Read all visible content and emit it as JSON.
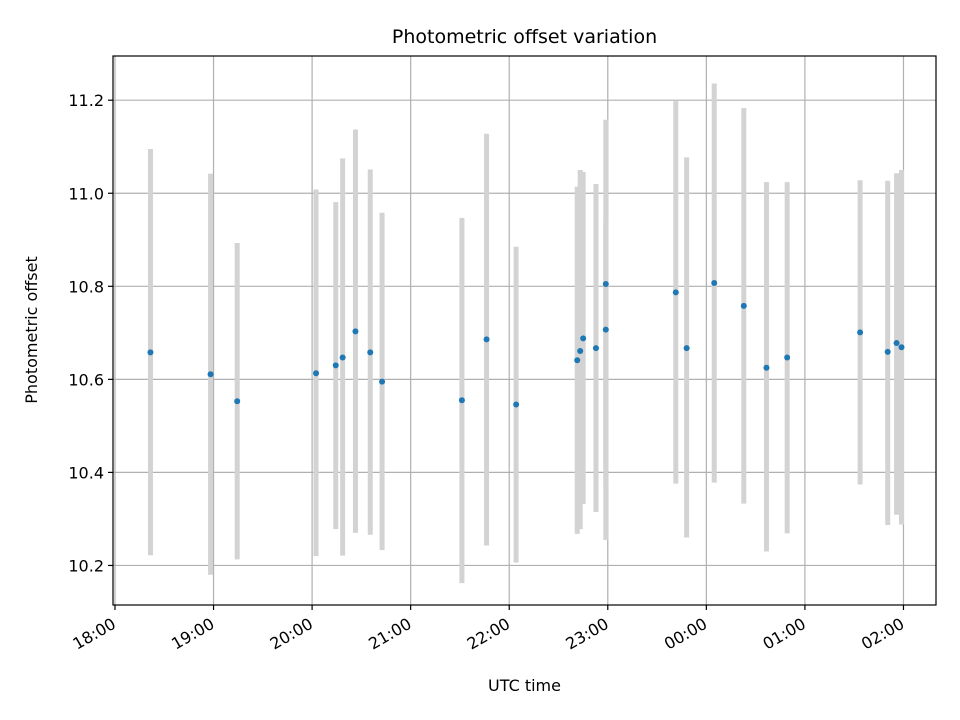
{
  "chart_data": {
    "type": "scatter",
    "title": "Photometric offset variation",
    "xlabel": "UTC time",
    "ylabel": "Photometric offset",
    "x_unit": "hours",
    "xlim": [
      17.98,
      26.33
    ],
    "ylim": [
      10.115,
      11.295
    ],
    "grid": true,
    "colors": {
      "points": "#1f77b4",
      "errorbars": "#d3d3d3",
      "grid": "#b0b0b0"
    },
    "xticks": [
      {
        "value": 18,
        "label": "18:00"
      },
      {
        "value": 19,
        "label": "19:00"
      },
      {
        "value": 20,
        "label": "20:00"
      },
      {
        "value": 21,
        "label": "21:00"
      },
      {
        "value": 22,
        "label": "22:00"
      },
      {
        "value": 23,
        "label": "23:00"
      },
      {
        "value": 24,
        "label": "00:00"
      },
      {
        "value": 25,
        "label": "01:00"
      },
      {
        "value": 26,
        "label": "02:00"
      }
    ],
    "yticks": [
      {
        "value": 10.2,
        "label": "10.2"
      },
      {
        "value": 10.4,
        "label": "10.4"
      },
      {
        "value": 10.6,
        "label": "10.6"
      },
      {
        "value": 10.8,
        "label": "10.8"
      },
      {
        "value": 11.0,
        "label": "11.0"
      },
      {
        "value": 11.2,
        "label": "11.2"
      }
    ],
    "points": [
      {
        "x": 18.36,
        "y": 10.658,
        "lo": 10.222,
        "hi": 11.095
      },
      {
        "x": 18.97,
        "y": 10.611,
        "lo": 10.18,
        "hi": 11.042
      },
      {
        "x": 19.24,
        "y": 10.553,
        "lo": 10.213,
        "hi": 10.893
      },
      {
        "x": 20.04,
        "y": 10.613,
        "lo": 10.22,
        "hi": 11.008
      },
      {
        "x": 20.24,
        "y": 10.63,
        "lo": 10.278,
        "hi": 10.981
      },
      {
        "x": 20.31,
        "y": 10.647,
        "lo": 10.221,
        "hi": 11.075
      },
      {
        "x": 20.44,
        "y": 10.703,
        "lo": 10.27,
        "hi": 11.137
      },
      {
        "x": 20.59,
        "y": 10.658,
        "lo": 10.266,
        "hi": 11.051
      },
      {
        "x": 20.71,
        "y": 10.595,
        "lo": 10.233,
        "hi": 10.958
      },
      {
        "x": 21.52,
        "y": 10.555,
        "lo": 10.162,
        "hi": 10.947
      },
      {
        "x": 21.77,
        "y": 10.686,
        "lo": 10.243,
        "hi": 11.128
      },
      {
        "x": 22.07,
        "y": 10.546,
        "lo": 10.206,
        "hi": 10.885
      },
      {
        "x": 22.69,
        "y": 10.641,
        "lo": 10.268,
        "hi": 11.014
      },
      {
        "x": 22.72,
        "y": 10.661,
        "lo": 10.278,
        "hi": 11.05
      },
      {
        "x": 22.75,
        "y": 10.688,
        "lo": 10.332,
        "hi": 11.046
      },
      {
        "x": 22.88,
        "y": 10.667,
        "lo": 10.315,
        "hi": 11.02
      },
      {
        "x": 22.98,
        "y": 10.707,
        "lo": 10.255,
        "hi": 11.158
      },
      {
        "x": 22.98,
        "y": 10.805,
        "lo": 10.37,
        "hi": 10.94
      },
      {
        "x": 23.69,
        "y": 10.787,
        "lo": 10.376,
        "hi": 11.198
      },
      {
        "x": 23.8,
        "y": 10.667,
        "lo": 10.26,
        "hi": 11.077
      },
      {
        "x": 24.08,
        "y": 10.807,
        "lo": 10.378,
        "hi": 11.236
      },
      {
        "x": 24.38,
        "y": 10.758,
        "lo": 10.333,
        "hi": 11.183
      },
      {
        "x": 24.61,
        "y": 10.625,
        "lo": 10.23,
        "hi": 11.024
      },
      {
        "x": 24.82,
        "y": 10.647,
        "lo": 10.269,
        "hi": 11.024
      },
      {
        "x": 25.56,
        "y": 10.701,
        "lo": 10.374,
        "hi": 11.028
      },
      {
        "x": 25.84,
        "y": 10.659,
        "lo": 10.287,
        "hi": 11.027
      },
      {
        "x": 25.93,
        "y": 10.678,
        "lo": 10.309,
        "hi": 11.043
      },
      {
        "x": 25.98,
        "y": 10.669,
        "lo": 10.288,
        "hi": 11.05
      }
    ]
  }
}
